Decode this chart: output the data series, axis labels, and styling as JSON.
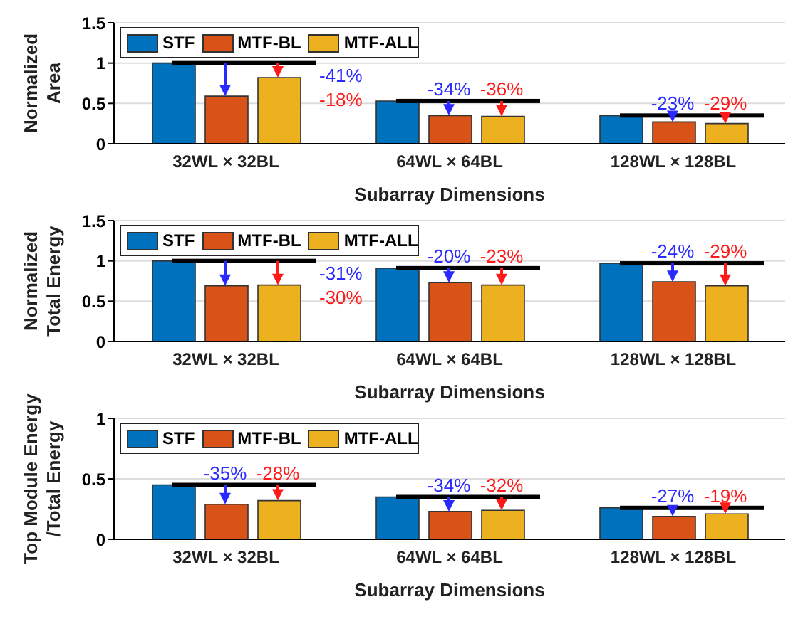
{
  "chart_data": [
    {
      "type": "bar",
      "ylabel": "Normalized\nArea",
      "xlabel": "Subarray Dimensions",
      "categories": [
        "32WL × 32BL",
        "64WL × 64BL",
        "128WL × 128BL"
      ],
      "series": [
        {
          "name": "STF",
          "color": "#0072bd",
          "values": [
            1,
            0.53,
            0.35
          ]
        },
        {
          "name": "MTF-BL",
          "color": "#d95319",
          "values": [
            0.59,
            0.35,
            0.27
          ]
        },
        {
          "name": "MTF-ALL",
          "color": "#edb120",
          "values": [
            0.82,
            0.34,
            0.25
          ]
        }
      ],
      "ylim": [
        0,
        1.5
      ],
      "yticks": [
        0,
        0.5,
        1,
        1.5
      ],
      "grid": "y",
      "legend": "top left",
      "annotations": [
        "-41%",
        "-18%",
        "-34%",
        "-36%",
        "-23%",
        "-29%"
      ]
    },
    {
      "type": "bar",
      "ylabel": "Normalized\nTotal Energy",
      "xlabel": "Subarray Dimensions",
      "categories": [
        "32WL × 32BL",
        "64WL × 64BL",
        "128WL × 128BL"
      ],
      "series": [
        {
          "name": "STF",
          "color": "#0072bd",
          "values": [
            1,
            0.91,
            0.97
          ]
        },
        {
          "name": "MTF-BL",
          "color": "#d95319",
          "values": [
            0.69,
            0.73,
            0.74
          ]
        },
        {
          "name": "MTF-ALL",
          "color": "#edb120",
          "values": [
            0.7,
            0.7,
            0.69
          ]
        }
      ],
      "ylim": [
        0,
        1.5
      ],
      "yticks": [
        0,
        0.5,
        1,
        1.5
      ],
      "grid": "y",
      "legend": "top left",
      "annotations": [
        "-31%",
        "-30%",
        "-20%",
        "-23%",
        "-24%",
        "-29%"
      ]
    },
    {
      "type": "bar",
      "ylabel": "Top Module Energy\n/Total Energy",
      "xlabel": "Subarray Dimensions",
      "categories": [
        "32WL × 32BL",
        "64WL × 64BL",
        "128WL × 128BL"
      ],
      "series": [
        {
          "name": "STF",
          "color": "#0072bd",
          "values": [
            0.45,
            0.35,
            0.26
          ]
        },
        {
          "name": "MTF-BL",
          "color": "#d95319",
          "values": [
            0.29,
            0.23,
            0.19
          ]
        },
        {
          "name": "MTF-ALL",
          "color": "#edb120",
          "values": [
            0.32,
            0.24,
            0.21
          ]
        }
      ],
      "ylim": [
        0,
        1
      ],
      "yticks": [
        0,
        0.5,
        1
      ],
      "grid": "y",
      "legend": "top left",
      "annotations": [
        "-35%",
        "-28%",
        "-34%",
        "-32%",
        "-27%",
        "-19%"
      ]
    }
  ]
}
